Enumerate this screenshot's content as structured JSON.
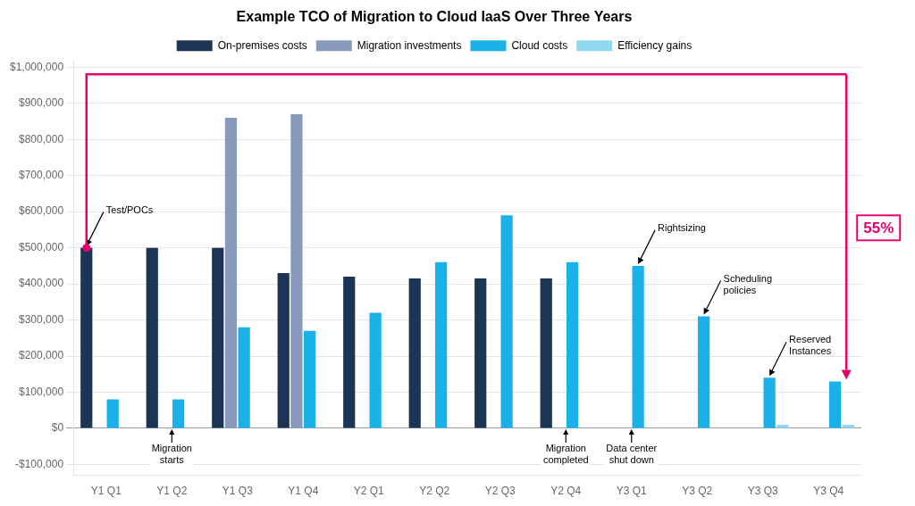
{
  "chart_data": {
    "type": "bar",
    "title": "Example TCO of Migration to Cloud IaaS Over Three Years",
    "categories": [
      "Y1 Q1",
      "Y1 Q2",
      "Y1 Q3",
      "Y1 Q4",
      "Y2 Q1",
      "Y2 Q2",
      "Y2 Q3",
      "Y2 Q4",
      "Y3 Q1",
      "Y3 Q2",
      "Y3 Q3",
      "Y3 Q4"
    ],
    "series": [
      {
        "name": "On-premises costs",
        "color": "#1c3557",
        "values": [
          500000,
          500000,
          500000,
          430000,
          420000,
          415000,
          415000,
          415000,
          0,
          0,
          0,
          0
        ]
      },
      {
        "name": "Migration investments",
        "color": "#8899bb",
        "values": [
          0,
          0,
          860000,
          870000,
          0,
          0,
          0,
          0,
          0,
          0,
          0,
          0
        ]
      },
      {
        "name": "Cloud costs",
        "color": "#1ab0e8",
        "values": [
          80000,
          80000,
          280000,
          270000,
          320000,
          460000,
          590000,
          460000,
          450000,
          310000,
          140000,
          130000
        ]
      },
      {
        "name": "Efficiency gains",
        "color": "#90d8f0",
        "values": [
          0,
          0,
          0,
          0,
          0,
          0,
          0,
          0,
          0,
          0,
          10000,
          10000
        ]
      }
    ],
    "ylim": [
      -130000,
      1020000
    ],
    "yticks": [
      {
        "value": -100000,
        "label": "-$100,000"
      },
      {
        "value": 0,
        "label": "$0"
      },
      {
        "value": 100000,
        "label": "$100,000"
      },
      {
        "value": 200000,
        "label": "$200,000"
      },
      {
        "value": 300000,
        "label": "$300,000"
      },
      {
        "value": 400000,
        "label": "$400,000"
      },
      {
        "value": 500000,
        "label": "$500,000"
      },
      {
        "value": 600000,
        "label": "$600,000"
      },
      {
        "value": 700000,
        "label": "$700,000"
      },
      {
        "value": 800000,
        "label": "$800,000"
      },
      {
        "value": 900000,
        "label": "$900,000"
      },
      {
        "value": 1000000,
        "label": "$1,000,000"
      }
    ],
    "grid": true,
    "legend": "top",
    "annotations": [
      {
        "text": "Test/POCs",
        "category": "Y1 Q1",
        "series": "On-premises costs"
      },
      {
        "text": "Migration\nstarts",
        "category": "Y1 Q2"
      },
      {
        "text": "Migration\ncompleted",
        "category": "Y2 Q4"
      },
      {
        "text": "Data center\nshut down",
        "category": "Y3 Q1"
      },
      {
        "text": "Rightsizing",
        "category": "Y3 Q1",
        "series": "Cloud costs"
      },
      {
        "text": "Scheduling\npolicies",
        "category": "Y3 Q2",
        "series": "Cloud costs"
      },
      {
        "text": "Reserved\nInstances",
        "category": "Y3 Q3",
        "series": "Cloud costs"
      },
      {
        "text": "55%",
        "color": "#e8006a",
        "from": {
          "category": "Y1 Q1",
          "series": "On-premises costs"
        },
        "to": {
          "category": "Y3 Q4",
          "series": "Cloud costs"
        }
      }
    ]
  }
}
